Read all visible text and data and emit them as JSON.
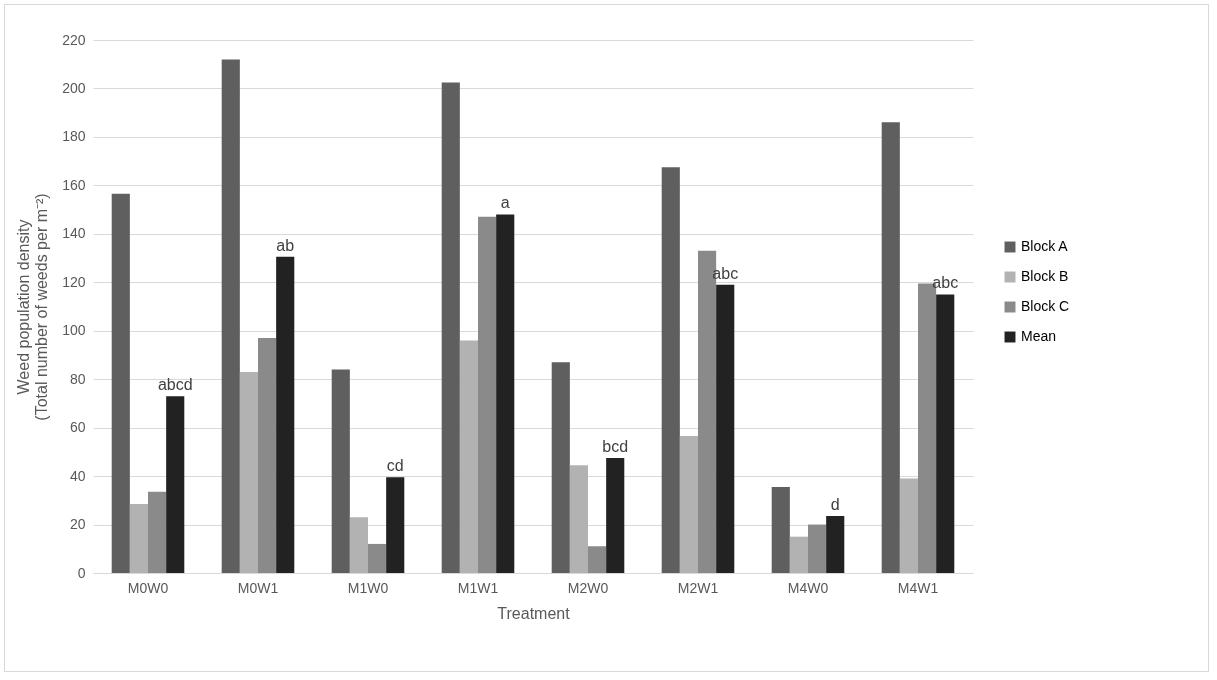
{
  "chart_data": {
    "type": "bar",
    "xlabel": "Treatment",
    "ylabel": "Weed population density\n(Total number of weeds per m⁻²)",
    "categories": [
      "M0W0",
      "M0W1",
      "M1W0",
      "M1W1",
      "M2W0",
      "M2W1",
      "M4W0",
      "M4W1"
    ],
    "series": [
      {
        "name": "Block A",
        "color": "#5f5f5f",
        "values": [
          156.5,
          212,
          84,
          202.5,
          87,
          167.5,
          35.5,
          186
        ]
      },
      {
        "name": "Block B",
        "color": "#b2b2b2",
        "values": [
          28.5,
          83,
          23,
          96,
          44.5,
          56.5,
          15,
          39
        ]
      },
      {
        "name": "Block C",
        "color": "#8a8a8a",
        "values": [
          33.5,
          97,
          12,
          147,
          11,
          133,
          20,
          119.5
        ]
      },
      {
        "name": "Mean",
        "color": "#222222",
        "values": [
          73,
          130.5,
          39.5,
          148,
          47.5,
          119,
          23.5,
          115
        ]
      }
    ],
    "annotations": [
      "abcd",
      "ab",
      "cd",
      "a",
      "bcd",
      "abc",
      "d",
      "abc"
    ],
    "ylim": [
      0,
      220
    ],
    "yticks": [
      0,
      20,
      40,
      60,
      80,
      100,
      120,
      140,
      160,
      180,
      200,
      220
    ],
    "grid": "y",
    "legend": "right"
  }
}
